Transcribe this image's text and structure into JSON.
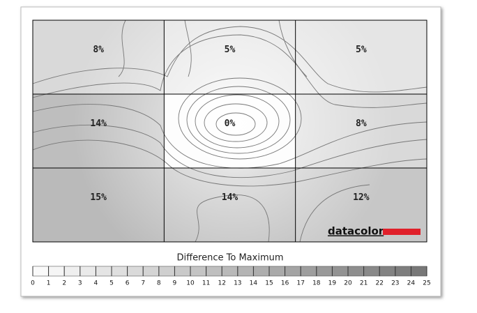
{
  "chart_data": {
    "type": "heatmap",
    "values": [
      [
        8,
        5,
        5
      ],
      [
        14,
        0,
        8
      ],
      [
        15,
        14,
        12
      ]
    ],
    "value_labels": [
      [
        "8%",
        "5%",
        "5%"
      ],
      [
        "14%",
        "0%",
        "8%"
      ],
      [
        "15%",
        "14%",
        "12%"
      ]
    ],
    "legend_title": "Difference To Maximum",
    "scale_ticks": [
      0,
      1,
      2,
      3,
      4,
      5,
      6,
      7,
      8,
      9,
      10,
      11,
      12,
      13,
      14,
      15,
      16,
      17,
      18,
      19,
      20,
      21,
      22,
      23,
      24,
      25
    ],
    "logo": "datacolor"
  }
}
